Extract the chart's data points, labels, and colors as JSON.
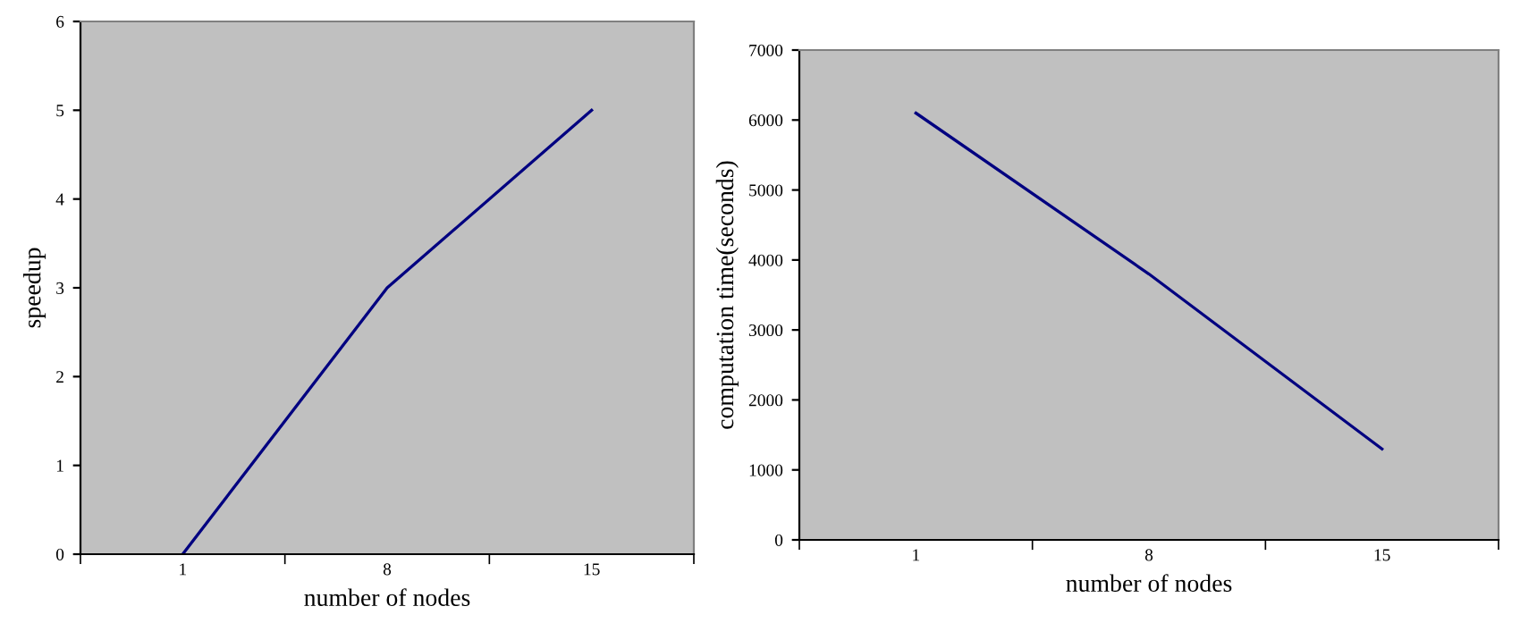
{
  "chart_data": [
    {
      "type": "line",
      "xlabel": "number of nodes",
      "ylabel": "speedup",
      "categories": [
        "1",
        "8",
        "15"
      ],
      "series": [
        {
          "color": "#000080",
          "values": [
            0,
            3,
            5
          ]
        }
      ],
      "ylim": [
        0,
        6
      ],
      "yticks": [
        0,
        1,
        2,
        3,
        4,
        5,
        6
      ],
      "grid": false,
      "marker": "none",
      "line_style": "solid"
    },
    {
      "type": "line",
      "xlabel": "number of nodes",
      "ylabel": "computation time(seconds)",
      "categories": [
        "1",
        "8",
        "15"
      ],
      "series": [
        {
          "color": "#000080",
          "values": [
            6100,
            3800,
            1300
          ]
        }
      ],
      "ylim": [
        0,
        7000
      ],
      "yticks": [
        0,
        1000,
        2000,
        3000,
        4000,
        5000,
        6000,
        7000
      ],
      "grid": false,
      "marker": "none",
      "line_style": "solid"
    }
  ]
}
